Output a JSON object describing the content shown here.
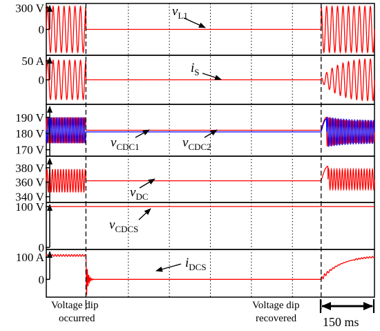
{
  "chart_data": {
    "type": "line",
    "time_scale_label": "150 ms",
    "events": [
      {
        "id": "dip",
        "t_ms": 145,
        "lines": [
          "Voltage dip",
          "occurred"
        ]
      },
      {
        "id": "recover",
        "t_ms": 1005,
        "lines": [
          "Voltage dip",
          "recovered"
        ]
      }
    ],
    "panels": [
      {
        "id": "vL1",
        "ticks": [
          {
            "label": "300 V",
            "value": 300
          },
          {
            "label": "0",
            "value": 0
          }
        ],
        "ylim": [
          -360,
          360
        ],
        "series": [
          {
            "sym": "v",
            "sub": "L1",
            "color": "#ff0000"
          }
        ]
      },
      {
        "id": "iS",
        "ticks": [
          {
            "label": "50 A",
            "value": 50
          },
          {
            "label": "0",
            "value": 0
          }
        ],
        "ylim": [
          -65,
          65
        ],
        "series": [
          {
            "sym": "i",
            "sub": "S",
            "color": "#ff0000"
          }
        ]
      },
      {
        "id": "vCDC",
        "ticks": [
          {
            "label": "190 V",
            "value": 190
          },
          {
            "label": "180 V",
            "value": 180
          },
          {
            "label": "170 V",
            "value": 170
          }
        ],
        "ylim": [
          166,
          198
        ],
        "series": [
          {
            "sym": "v",
            "sub": "CDC1",
            "color": "#ff0000"
          },
          {
            "sym": "v",
            "sub": "CDC2",
            "color": "#0000ff"
          }
        ]
      },
      {
        "id": "vDC",
        "ticks": [
          {
            "label": "380 V",
            "value": 380
          },
          {
            "label": "360 V",
            "value": 360
          },
          {
            "label": "340 V",
            "value": 340
          }
        ],
        "ylim": [
          332,
          396
        ],
        "series": [
          {
            "sym": "v",
            "sub": "DC",
            "color": "#ff0000"
          }
        ]
      },
      {
        "id": "vCDCS",
        "ticks": [
          {
            "label": "100 V",
            "value": 100
          },
          {
            "label": "0",
            "value": 0
          }
        ],
        "ylim": [
          -5,
          110
        ],
        "series": [
          {
            "sym": "v",
            "sub": "CDCS",
            "color": "#ff0000"
          }
        ]
      },
      {
        "id": "iDCS",
        "ticks": [
          {
            "label": "100 A",
            "value": 100
          },
          {
            "label": "0",
            "value": 0
          }
        ],
        "ylim": [
          -80,
          135
        ],
        "series": [
          {
            "sym": "i",
            "sub": "DCS",
            "color": "#ff0000"
          }
        ]
      }
    ]
  }
}
